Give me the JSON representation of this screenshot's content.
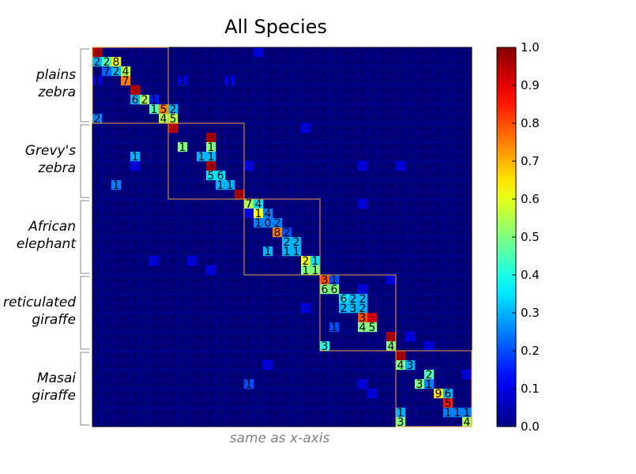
{
  "chart_data": {
    "type": "heatmap",
    "title": "All Species",
    "xlabel": "same as x-axis",
    "ylabel": "",
    "n": 40,
    "group_size": 8,
    "groups": [
      [
        "plains",
        "zebra"
      ],
      [
        "Grevy's",
        "zebra"
      ],
      [
        "African",
        "elephant"
      ],
      [
        "reticulated",
        "giraffe"
      ],
      [
        "Masai",
        "giraffe"
      ]
    ],
    "zero_label": "0",
    "colorbar": {
      "range": [
        0,
        1
      ],
      "ticks": [
        "0.0",
        "0.1",
        "0.2",
        "0.3",
        "0.4",
        "0.5",
        "0.6",
        "0.7",
        "0.8",
        "0.9",
        "1.0"
      ]
    },
    "box_color": "#e5a236",
    "cells": [
      {
        "r": 0,
        "c": 0,
        "label": "4",
        "value": 0.95
      },
      {
        "r": 1,
        "c": 0,
        "label": "2",
        "value": 0.3
      },
      {
        "r": 1,
        "c": 1,
        "label": "2",
        "value": 0.45
      },
      {
        "r": 1,
        "c": 2,
        "label": "8",
        "value": 0.62
      },
      {
        "r": 2,
        "c": 1,
        "label": "7",
        "value": 0.22
      },
      {
        "r": 2,
        "c": 2,
        "label": "2",
        "value": 0.3
      },
      {
        "r": 2,
        "c": 3,
        "label": "4",
        "value": 0.55
      },
      {
        "r": 3,
        "c": 0,
        "label": "1",
        "value": 0.1
      },
      {
        "r": 3,
        "c": 3,
        "label": "7",
        "value": 0.75
      },
      {
        "r": 3,
        "c": 9,
        "label": "1",
        "value": 0.1
      },
      {
        "r": 3,
        "c": 14,
        "label": "1",
        "value": 0.1
      },
      {
        "r": 4,
        "c": 4,
        "label": "9",
        "value": 0.93
      },
      {
        "r": 5,
        "c": 4,
        "label": "6",
        "value": 0.3
      },
      {
        "r": 5,
        "c": 5,
        "label": "2",
        "value": 0.55
      },
      {
        "r": 5,
        "c": 6,
        "label": "1",
        "value": 0.15
      },
      {
        "r": 6,
        "c": 6,
        "label": "1",
        "value": 0.45
      },
      {
        "r": 6,
        "c": 7,
        "label": "5",
        "value": 0.75
      },
      {
        "r": 6,
        "c": 8,
        "label": "2",
        "value": 0.3
      },
      {
        "r": 7,
        "c": 0,
        "label": "2",
        "value": 0.25
      },
      {
        "r": 7,
        "c": 7,
        "label": "4",
        "value": 0.55
      },
      {
        "r": 7,
        "c": 8,
        "label": "5",
        "value": 0.55
      },
      {
        "r": 8,
        "c": 8,
        "label": "4",
        "value": 0.93
      },
      {
        "r": 9,
        "c": 12,
        "label": "8",
        "value": 0.95
      },
      {
        "r": 10,
        "c": 9,
        "label": "1",
        "value": 0.5
      },
      {
        "r": 10,
        "c": 12,
        "label": "1",
        "value": 0.5
      },
      {
        "r": 11,
        "c": 4,
        "label": "1",
        "value": 0.3
      },
      {
        "r": 11,
        "c": 11,
        "label": "1",
        "value": 0.3
      },
      {
        "r": 11,
        "c": 12,
        "label": "1",
        "value": 0.3
      },
      {
        "r": 12,
        "c": 12,
        "label": "4",
        "value": 0.95
      },
      {
        "r": 13,
        "c": 12,
        "label": "5",
        "value": 0.35
      },
      {
        "r": 13,
        "c": 13,
        "label": "6",
        "value": 0.35
      },
      {
        "r": 14,
        "c": 2,
        "label": "1",
        "value": 0.25
      },
      {
        "r": 14,
        "c": 13,
        "label": "1",
        "value": 0.3
      },
      {
        "r": 14,
        "c": 14,
        "label": "1",
        "value": 0.3
      },
      {
        "r": 15,
        "c": 15,
        "label": "9",
        "value": 0.95
      },
      {
        "r": 16,
        "c": 16,
        "label": "7",
        "value": 0.55
      },
      {
        "r": 16,
        "c": 17,
        "label": "4",
        "value": 0.35
      },
      {
        "r": 17,
        "c": 17,
        "label": "1",
        "value": 0.62
      },
      {
        "r": 17,
        "c": 18,
        "label": "4",
        "value": 0.25
      },
      {
        "r": 18,
        "c": 17,
        "label": "1",
        "value": 0.25
      },
      {
        "r": 18,
        "c": 18,
        "label": "0",
        "value": 0.25
      },
      {
        "r": 18,
        "c": 19,
        "label": "2",
        "value": 0.25
      },
      {
        "r": 19,
        "c": 19,
        "label": "8",
        "value": 0.75
      },
      {
        "r": 19,
        "c": 20,
        "label": "2",
        "value": 0.2
      },
      {
        "r": 20,
        "c": 20,
        "label": "2",
        "value": 0.3
      },
      {
        "r": 20,
        "c": 21,
        "label": "2",
        "value": 0.3
      },
      {
        "r": 21,
        "c": 18,
        "label": "1",
        "value": 0.3
      },
      {
        "r": 21,
        "c": 20,
        "label": "1",
        "value": 0.3
      },
      {
        "r": 21,
        "c": 21,
        "label": "1",
        "value": 0.3
      },
      {
        "r": 22,
        "c": 22,
        "label": "2",
        "value": 0.62
      },
      {
        "r": 22,
        "c": 23,
        "label": "1",
        "value": 0.35
      },
      {
        "r": 23,
        "c": 22,
        "label": "1",
        "value": 0.5
      },
      {
        "r": 23,
        "c": 23,
        "label": "1",
        "value": 0.5
      },
      {
        "r": 24,
        "c": 24,
        "label": "3",
        "value": 0.8
      },
      {
        "r": 24,
        "c": 25,
        "label": "1",
        "value": 0.2
      },
      {
        "r": 25,
        "c": 24,
        "label": "6",
        "value": 0.5
      },
      {
        "r": 25,
        "c": 25,
        "label": "6",
        "value": 0.5
      },
      {
        "r": 26,
        "c": 26,
        "label": "6",
        "value": 0.35
      },
      {
        "r": 26,
        "c": 27,
        "label": "2",
        "value": 0.3
      },
      {
        "r": 26,
        "c": 28,
        "label": "2",
        "value": 0.3
      },
      {
        "r": 27,
        "c": 26,
        "label": "2",
        "value": 0.3
      },
      {
        "r": 27,
        "c": 27,
        "label": "3",
        "value": 0.3
      },
      {
        "r": 27,
        "c": 28,
        "label": "2",
        "value": 0.3
      },
      {
        "r": 28,
        "c": 28,
        "label": "3",
        "value": 0.8
      },
      {
        "r": 28,
        "c": 29,
        "label": "5",
        "value": 0.9
      },
      {
        "r": 29,
        "c": 25,
        "label": "1",
        "value": 0.2
      },
      {
        "r": 29,
        "c": 28,
        "label": "4",
        "value": 0.5
      },
      {
        "r": 29,
        "c": 29,
        "label": "5",
        "value": 0.5
      },
      {
        "r": 30,
        "c": 31,
        "label": "4",
        "value": 0.95
      },
      {
        "r": 31,
        "c": 24,
        "label": "3",
        "value": 0.4
      },
      {
        "r": 31,
        "c": 31,
        "label": "4",
        "value": 0.5
      },
      {
        "r": 32,
        "c": 32,
        "label": "8",
        "value": 0.95
      },
      {
        "r": 33,
        "c": 32,
        "label": "4",
        "value": 0.5
      },
      {
        "r": 33,
        "c": 33,
        "label": "3",
        "value": 0.3
      },
      {
        "r": 34,
        "c": 35,
        "label": "2",
        "value": 0.45
      },
      {
        "r": 35,
        "c": 16,
        "label": "1",
        "value": 0.2
      },
      {
        "r": 35,
        "c": 34,
        "label": "3",
        "value": 0.5
      },
      {
        "r": 35,
        "c": 35,
        "label": "1",
        "value": 0.25
      },
      {
        "r": 36,
        "c": 36,
        "label": "9",
        "value": 0.65
      },
      {
        "r": 36,
        "c": 37,
        "label": "6",
        "value": 0.3
      },
      {
        "r": 37,
        "c": 37,
        "label": "5",
        "value": 0.85
      },
      {
        "r": 38,
        "c": 32,
        "label": "1",
        "value": 0.3
      },
      {
        "r": 38,
        "c": 37,
        "label": "1",
        "value": 0.25
      },
      {
        "r": 38,
        "c": 38,
        "label": "1",
        "value": 0.25
      },
      {
        "r": 38,
        "c": 39,
        "label": "1",
        "value": 0.25
      },
      {
        "r": 39,
        "c": 32,
        "label": "3",
        "value": 0.5
      },
      {
        "r": 39,
        "c": 39,
        "label": "4",
        "value": 0.55
      }
    ],
    "faint_cells": [
      [
        0,
        17
      ],
      [
        3,
        9
      ],
      [
        3,
        14
      ],
      [
        8,
        22
      ],
      [
        11,
        4
      ],
      [
        12,
        4
      ],
      [
        12,
        16
      ],
      [
        12,
        28
      ],
      [
        12,
        32
      ],
      [
        16,
        28
      ],
      [
        17,
        16
      ],
      [
        22,
        6
      ],
      [
        22,
        10
      ],
      [
        23,
        12
      ],
      [
        24,
        31
      ],
      [
        25,
        28
      ],
      [
        27,
        22
      ],
      [
        29,
        25
      ],
      [
        30,
        31
      ],
      [
        30,
        33
      ],
      [
        31,
        35
      ],
      [
        33,
        18
      ],
      [
        34,
        39
      ],
      [
        35,
        28
      ],
      [
        36,
        29
      ]
    ]
  }
}
